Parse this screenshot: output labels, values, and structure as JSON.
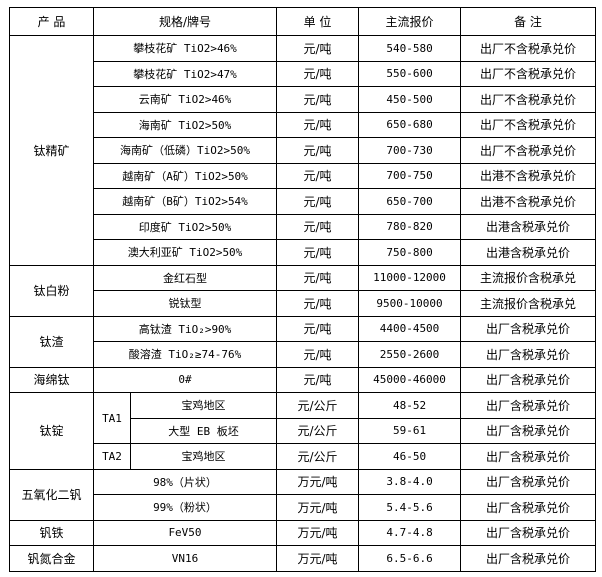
{
  "header": {
    "product": "产  品",
    "spec": "规格/牌号",
    "unit": "单 位",
    "price": "主流报价",
    "note": "备  注"
  },
  "groups": [
    {
      "product": "钛精矿",
      "rows": [
        {
          "spec": "攀枝花矿 TiO2>46%",
          "unit": "元/吨",
          "price": "540-580",
          "note": "出厂不含税承兑价"
        },
        {
          "spec": "攀枝花矿 TiO2>47%",
          "unit": "元/吨",
          "price": "550-600",
          "note": "出厂不含税承兑价"
        },
        {
          "spec": "云南矿 TiO2>46%",
          "unit": "元/吨",
          "price": "450-500",
          "note": "出厂不含税承兑价"
        },
        {
          "spec": "海南矿 TiO2>50%",
          "unit": "元/吨",
          "price": "650-680",
          "note": "出厂不含税承兑价"
        },
        {
          "spec": "海南矿（低磷）TiO2>50%",
          "unit": "元/吨",
          "price": "700-730",
          "note": "出厂不含税承兑价"
        },
        {
          "spec": "越南矿（A矿）TiO2>50%",
          "unit": "元/吨",
          "price": "700-750",
          "note": "出港不含税承兑价"
        },
        {
          "spec": "越南矿（B矿）TiO2>54%",
          "unit": "元/吨",
          "price": "650-700",
          "note": "出港不含税承兑价"
        },
        {
          "spec": "印度矿 TiO2>50%",
          "unit": "元/吨",
          "price": "780-820",
          "note": "出港含税承兑价"
        },
        {
          "spec": "澳大利亚矿 TiO2>50%",
          "unit": "元/吨",
          "price": "750-800",
          "note": "出港含税承兑价"
        }
      ]
    },
    {
      "product": "钛白粉",
      "rows": [
        {
          "spec": "金红石型",
          "unit": "元/吨",
          "price": "11000-12000",
          "note": "主流报价含税承兑"
        },
        {
          "spec": "锐钛型",
          "unit": "元/吨",
          "price": "9500-10000",
          "note": "主流报价含税承兑"
        }
      ]
    },
    {
      "product": "钛渣",
      "rows": [
        {
          "spec": "高钛渣 TiO₂>90%",
          "unit": "元/吨",
          "price": "4400-4500",
          "note": "出厂含税承兑价"
        },
        {
          "spec": "酸溶渣 TiO₂≥74-76%",
          "unit": "元/吨",
          "price": "2550-2600",
          "note": "出厂含税承兑价"
        }
      ]
    },
    {
      "product": "海绵钛",
      "rows": [
        {
          "spec": "0#",
          "unit": "元/吨",
          "price": "45000-46000",
          "note": "出厂含税承兑价"
        }
      ]
    },
    {
      "product": "钛锭",
      "rows": [
        {
          "grade": "TA1",
          "spec": "宝鸡地区",
          "unit": "元/公斤",
          "price": "48-52",
          "note": "出厂含税承兑价"
        },
        {
          "spec": "大型 EB 板坯",
          "unit": "元/公斤",
          "price": "59-61",
          "note": "出厂含税承兑价"
        },
        {
          "grade": "TA2",
          "spec": "宝鸡地区",
          "unit": "元/公斤",
          "price": "46-50",
          "note": "出厂含税承兑价"
        }
      ]
    },
    {
      "product": "五氧化二钒",
      "rows": [
        {
          "spec": "98%（片状）",
          "unit": "万元/吨",
          "price": "3.8-4.0",
          "note": "出厂含税承兑价"
        },
        {
          "spec": "99%（粉状）",
          "unit": "万元/吨",
          "price": "5.4-5.6",
          "note": "出厂含税承兑价"
        }
      ]
    },
    {
      "product": "钒铁",
      "rows": [
        {
          "spec": "FeV50",
          "unit": "万元/吨",
          "price": "4.7-4.8",
          "note": "出厂含税承兑价"
        }
      ]
    },
    {
      "product": "钒氮合金",
      "rows": [
        {
          "spec": "VN16",
          "unit": "万元/吨",
          "price": "6.5-6.6",
          "note": "出厂含税承兑价"
        }
      ]
    }
  ]
}
